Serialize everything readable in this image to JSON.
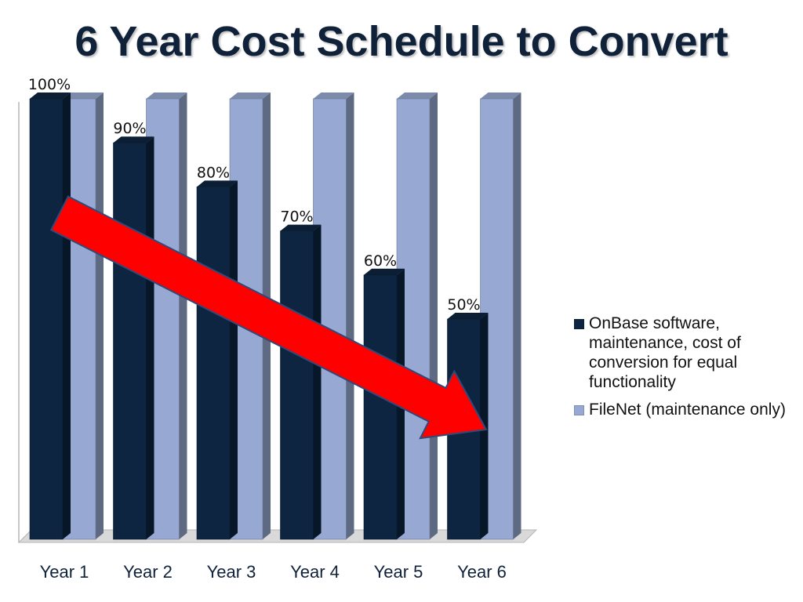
{
  "slide": {
    "title": "6 Year Cost Schedule to Convert"
  },
  "chart_data": {
    "type": "bar",
    "title": "6 Year Cost Schedule to Convert",
    "categories": [
      "Year 1",
      "Year 2",
      "Year 3",
      "Year 4",
      "Year 5",
      "Year 6"
    ],
    "series": [
      {
        "name": "OnBase software, maintenance, cost of conversion for equal functionality",
        "values": [
          100,
          90,
          80,
          70,
          60,
          50
        ],
        "data_labels": [
          "100%",
          "90%",
          "80%",
          "70%",
          "60%",
          "50%"
        ],
        "color": "#0d2540"
      },
      {
        "name": "FileNet (maintenance only)",
        "values": [
          100,
          100,
          100,
          100,
          100,
          100
        ],
        "color": "#97a9d2"
      }
    ],
    "ylim": [
      0,
      100
    ],
    "legend_position": "right",
    "grid": false,
    "style": "3d-clustered-column",
    "annotation": "red-trend-arrow-down"
  },
  "colors": {
    "title": "#10223a",
    "arrow": "#ff0000"
  }
}
